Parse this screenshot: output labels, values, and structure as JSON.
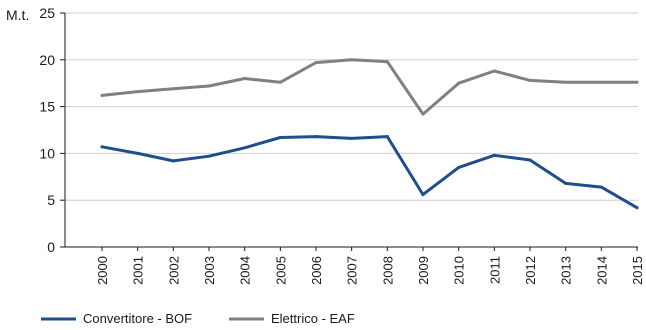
{
  "chart_data": {
    "type": "line",
    "ylabel": "M.t.",
    "ylim": [
      0,
      25
    ],
    "yticks": [
      0,
      5,
      10,
      15,
      20,
      25
    ],
    "grid": true,
    "legend_position": "bottom-left",
    "categories": [
      "2000",
      "2001",
      "2002",
      "2003",
      "2004",
      "2005",
      "2006",
      "2007",
      "2008",
      "2009",
      "2010",
      "2011",
      "2012",
      "2013",
      "2014",
      "2015"
    ],
    "series": [
      {
        "name": "Convertitore - BOF",
        "color": "#1f4e8c",
        "values": [
          10.7,
          10.0,
          9.2,
          9.7,
          10.6,
          11.7,
          11.8,
          11.6,
          11.8,
          5.6,
          8.5,
          9.8,
          9.3,
          6.8,
          6.4,
          4.2
        ]
      },
      {
        "name": "Elettrico - EAF",
        "color": "#808080",
        "values": [
          16.2,
          16.6,
          16.9,
          17.2,
          18.0,
          17.6,
          19.7,
          20.0,
          19.8,
          14.2,
          17.5,
          18.8,
          17.8,
          17.6,
          17.6,
          17.6
        ]
      }
    ]
  },
  "colors": {
    "grid": "#cfcfcf",
    "axis": "#1a1a1a"
  }
}
